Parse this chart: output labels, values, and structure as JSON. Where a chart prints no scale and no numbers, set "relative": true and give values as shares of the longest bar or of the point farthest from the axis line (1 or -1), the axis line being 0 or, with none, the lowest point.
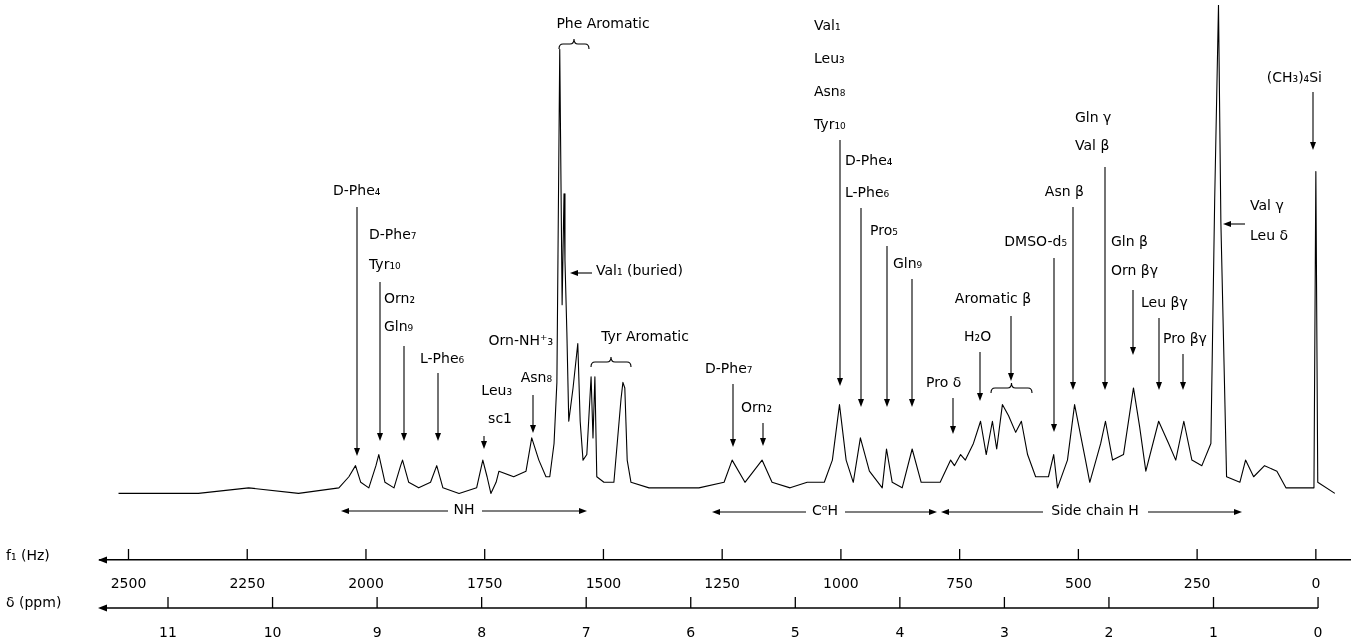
{
  "chart_data": {
    "type": "line",
    "relative": true,
    "xlabel": "f₁ (Hz)",
    "xlim": [
      2560,
      -74
    ],
    "xticks": [
      2500,
      2250,
      2000,
      1750,
      1500,
      1250,
      1000,
      750,
      500,
      250,
      0
    ],
    "marker": "none",
    "series": [
      {
        "color": "#000000",
        "x": [
          2521,
          2353,
          2247,
          2142,
          2057,
          2036,
          2022,
          2011,
          1994,
          1979,
          1973,
          1960,
          1941,
          1927,
          1923,
          1910,
          1889,
          1864,
          1851,
          1838,
          1804,
          1767,
          1754,
          1745,
          1737,
          1726,
          1720,
          1689,
          1663,
          1651,
          1636,
          1621,
          1613,
          1604,
          1598,
          1592,
          1587,
          1583,
          1581,
          1577,
          1573,
          1564,
          1554,
          1549,
          1543,
          1535,
          1526,
          1522,
          1518,
          1514,
          1499,
          1478,
          1463,
          1459,
          1455,
          1450,
          1442,
          1404,
          1299,
          1246,
          1229,
          1202,
          1166,
          1145,
          1107,
          1071,
          1035,
          1018,
          1003,
          989,
          974,
          959,
          940,
          913,
          904,
          892,
          871,
          850,
          831,
          791,
          769,
          761,
          748,
          738,
          721,
          706,
          694,
          681,
          672,
          660,
          647,
          632,
          620,
          607,
          590,
          563,
          552,
          544,
          523,
          508,
          485,
          476,
          453,
          443,
          428,
          405,
          384,
          371,
          358,
          331,
          310,
          295,
          278,
          261,
          240,
          221,
          213,
          205,
          200,
          188,
          160,
          148,
          131,
          108,
          82,
          63,
          30,
          13,
          4,
          0,
          -4,
          -40
        ],
        "values": [
          0.12,
          0.12,
          0.13,
          0.12,
          0.13,
          0.15,
          0.17,
          0.14,
          0.13,
          0.17,
          0.19,
          0.14,
          0.13,
          0.17,
          0.18,
          0.14,
          0.13,
          0.14,
          0.17,
          0.13,
          0.12,
          0.13,
          0.18,
          0.15,
          0.12,
          0.14,
          0.16,
          0.15,
          0.16,
          0.22,
          0.18,
          0.15,
          0.15,
          0.21,
          0.32,
          0.92,
          0.46,
          0.66,
          0.54,
          0.41,
          0.25,
          0.31,
          0.39,
          0.25,
          0.18,
          0.19,
          0.33,
          0.22,
          0.33,
          0.15,
          0.14,
          0.14,
          0.29,
          0.32,
          0.31,
          0.18,
          0.14,
          0.13,
          0.13,
          0.14,
          0.18,
          0.14,
          0.18,
          0.14,
          0.13,
          0.14,
          0.14,
          0.18,
          0.28,
          0.18,
          0.14,
          0.22,
          0.16,
          0.13,
          0.2,
          0.14,
          0.13,
          0.2,
          0.14,
          0.14,
          0.18,
          0.17,
          0.19,
          0.18,
          0.21,
          0.25,
          0.19,
          0.25,
          0.2,
          0.28,
          0.26,
          0.23,
          0.25,
          0.19,
          0.15,
          0.15,
          0.19,
          0.13,
          0.18,
          0.28,
          0.18,
          0.14,
          0.21,
          0.25,
          0.18,
          0.19,
          0.31,
          0.24,
          0.16,
          0.25,
          0.21,
          0.18,
          0.25,
          0.18,
          0.17,
          0.21,
          0.65,
          1.0,
          0.61,
          0.15,
          0.14,
          0.18,
          0.15,
          0.17,
          0.16,
          0.13,
          0.13,
          0.13,
          0.13,
          0.7,
          0.14,
          0.12
        ]
      }
    ],
    "annotations": [
      "D-Phe₄",
      "D-Phe₇",
      "Tyr₁₀",
      "Orn₂",
      "Gln₉",
      "L-Phe₆",
      "Leu₃",
      "sc1",
      "Orn-NH⁺₃",
      "Asn₈",
      "Val₁ (buried)",
      "D-Phe₇",
      "Orn₂",
      "Val₁",
      "Leu₃",
      "Asn₈",
      "Tyr₁₀",
      "D-Phe₄",
      "L-Phe₆",
      "Pro₅",
      "Gln₉",
      "Pro δ",
      "H₂O",
      "DMSO-d₅",
      "Asn β",
      "Gln γ",
      "Val β",
      "Gln β",
      "Orn βγ",
      "Leu βγ",
      "Pro βγ",
      "Val γ",
      "Leu δ",
      "(CH₃)₄Si",
      "Phe Aromatic",
      "Tyr Aromatic",
      "Aromatic β",
      "NH",
      "CᵅH",
      "Side chain H",
      "δ (ppm)",
      "11",
      "10",
      "9",
      "8",
      "7",
      "6",
      "5",
      "4",
      "3",
      "2",
      "1",
      "0"
    ]
  }
}
